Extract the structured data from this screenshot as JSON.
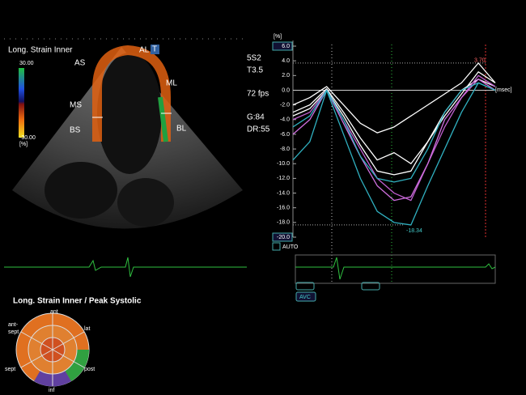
{
  "left_panel": {
    "title": "Long. Strain Inner",
    "scale_max": "30.00",
    "scale_min": "-30.00",
    "scale_unit": "[%]",
    "segment_labels": {
      "AS": "AS",
      "AL": "AL",
      "ML": "ML",
      "MS": "MS",
      "BS": "BS",
      "BL": "BL"
    },
    "probe_marker": "T"
  },
  "settings": [
    "5S2",
    "T3.5",
    "72 fps",
    "G:84",
    "DR:55"
  ],
  "strain_chart": {
    "y_unit": "[%]",
    "x_unit": "[msec]",
    "ylim": [
      -20,
      6
    ],
    "yticks": [
      {
        "value": 6,
        "label": "6.0"
      },
      {
        "value": 4,
        "label": "4.0"
      },
      {
        "value": 2,
        "label": "2.0"
      },
      {
        "value": 0,
        "label": "0.0"
      },
      {
        "value": -2,
        "label": "-2.0"
      },
      {
        "value": -4,
        "label": "-4.0"
      },
      {
        "value": -6,
        "label": "-6.0"
      },
      {
        "value": -8,
        "label": "-8.0"
      },
      {
        "value": -10,
        "label": "-10.0"
      },
      {
        "value": -12,
        "label": "-12.0"
      },
      {
        "value": -14,
        "label": "-14.0"
      },
      {
        "value": -16,
        "label": "-16.0"
      },
      {
        "value": -18,
        "label": "-18.0"
      },
      {
        "value": -20,
        "label": "-20.0"
      }
    ],
    "peak_value": 3.7,
    "peak_label": "3.70",
    "min_value": -18.34,
    "min_label": "-18.34",
    "series": [
      {
        "color": "#ffffff",
        "values": [
          -2,
          -1,
          0.5,
          -2,
          -4.5,
          -5.8,
          -5,
          -3.5,
          -2,
          -0.5,
          1,
          3.7,
          1
        ]
      },
      {
        "color": "#ffffff",
        "values": [
          -3,
          -2,
          0.2,
          -3,
          -6.5,
          -9.5,
          -8.5,
          -10,
          -7,
          -3,
          0,
          1.5,
          0.5
        ]
      },
      {
        "color": "#ffffff",
        "values": [
          -3.5,
          -2.5,
          0,
          -3.5,
          -7.5,
          -11,
          -11.5,
          -11,
          -7,
          -3.5,
          -0.5,
          2.5,
          1
        ]
      },
      {
        "color": "#c060d0",
        "values": [
          -4,
          -3,
          0,
          -4,
          -8,
          -12,
          -14,
          -15,
          -10,
          -5,
          -1,
          2,
          0.5
        ]
      },
      {
        "color": "#d070e0",
        "values": [
          -6,
          -4,
          0,
          -4.5,
          -9,
          -13,
          -15,
          -14.5,
          -10,
          -4,
          -1,
          1.5,
          0
        ]
      },
      {
        "color": "#30b0c0",
        "values": [
          -5,
          -3.5,
          0,
          -4,
          -9,
          -12,
          -12.5,
          -12,
          -8,
          -3,
          0,
          1,
          0
        ]
      },
      {
        "color": "#30b0c0",
        "values": [
          -9.5,
          -7,
          0,
          -6,
          -12,
          -16.5,
          -18,
          -18.34,
          -13,
          -8,
          -3,
          1,
          0
        ]
      }
    ],
    "auto_label": "AUTO",
    "avc_label": "AVC"
  },
  "bullseye": {
    "title": "Long. Strain Inner / Peak Systolic",
    "labels": {
      "ant": "ant",
      "lat": "lat",
      "post": "post",
      "inf": "inf",
      "sept": "sept",
      "antsept": [
        "ant-",
        "sept"
      ]
    }
  }
}
